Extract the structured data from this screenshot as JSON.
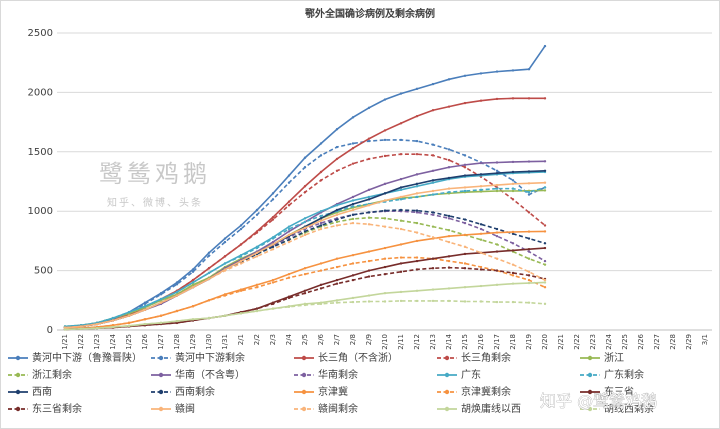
{
  "chart_data": {
    "type": "line",
    "title": "鄂外全国确诊病例及剩余病例",
    "annotations": [
      "鹭鸶鸡鹅",
      "知乎、微博、头条",
      "知乎 @鹭鸶鸡鹅"
    ],
    "categories": [
      "1/21",
      "1/22",
      "1/23",
      "1/24",
      "1/25",
      "1/26",
      "1/27",
      "1/28",
      "1/29",
      "1/30",
      "1/31",
      "2/1",
      "2/2",
      "2/3",
      "2/4",
      "2/5",
      "2/6",
      "2/7",
      "2/8",
      "2/9",
      "2/10",
      "2/11",
      "2/12",
      "2/13",
      "2/14",
      "2/15",
      "2/16",
      "2/17",
      "2/18",
      "2/19",
      "2/20",
      "2/21",
      "2/22",
      "2/23",
      "2/24",
      "2/25",
      "2/26",
      "2/27",
      "2/28",
      "2/29",
      "3/1"
    ],
    "ylim": [
      0,
      2500
    ],
    "yticks": [
      0,
      500,
      1000,
      1500,
      2000,
      2500
    ],
    "grid": true,
    "legend": "bottom",
    "series": [
      {
        "name": "黄河中下游（鲁豫晋陕）",
        "color": "#4a7ebb",
        "dashed": false,
        "values": [
          20,
          30,
          50,
          90,
          150,
          230,
          310,
          400,
          510,
          650,
          770,
          880,
          1010,
          1150,
          1300,
          1450,
          1570,
          1690,
          1790,
          1870,
          1940,
          1990,
          2030,
          2070,
          2110,
          2140,
          2160,
          2175,
          2185,
          2195,
          2390,
          null,
          null,
          null,
          null,
          null,
          null,
          null,
          null,
          null,
          null
        ]
      },
      {
        "name": "黄河中下游剩余",
        "color": "#4a7ebb",
        "dashed": true,
        "values": [
          20,
          30,
          50,
          85,
          145,
          220,
          300,
          385,
          490,
          625,
          740,
          850,
          970,
          1100,
          1240,
          1370,
          1470,
          1540,
          1570,
          1590,
          1600,
          1600,
          1590,
          1560,
          1520,
          1470,
          1410,
          1340,
          1260,
          1140,
          1200,
          null,
          null,
          null,
          null,
          null,
          null,
          null,
          null,
          null,
          null
        ]
      },
      {
        "name": "长三角（不含浙）",
        "color": "#be4b48",
        "dashed": false,
        "values": [
          20,
          30,
          50,
          80,
          130,
          190,
          260,
          330,
          420,
          520,
          620,
          720,
          830,
          950,
          1080,
          1210,
          1330,
          1440,
          1530,
          1610,
          1680,
          1740,
          1800,
          1850,
          1880,
          1910,
          1930,
          1945,
          1950,
          1950,
          1950,
          null,
          null,
          null,
          null,
          null,
          null,
          null,
          null,
          null,
          null
        ]
      },
      {
        "name": "长三角剩余",
        "color": "#be4b48",
        "dashed": true,
        "values": [
          20,
          30,
          50,
          80,
          130,
          190,
          260,
          330,
          420,
          520,
          620,
          720,
          820,
          930,
          1050,
          1160,
          1260,
          1340,
          1400,
          1440,
          1465,
          1480,
          1480,
          1470,
          1430,
          1370,
          1290,
          1200,
          1100,
          990,
          880,
          null,
          null,
          null,
          null,
          null,
          null,
          null,
          null,
          null,
          null
        ]
      },
      {
        "name": "浙江",
        "color": "#98b954",
        "dashed": false,
        "values": [
          30,
          40,
          60,
          100,
          140,
          190,
          250,
          300,
          380,
          440,
          530,
          600,
          660,
          720,
          800,
          870,
          940,
          990,
          1030,
          1060,
          1090,
          1110,
          1120,
          1140,
          1150,
          1160,
          1165,
          1170,
          1170,
          1172,
          1175,
          null,
          null,
          null,
          null,
          null,
          null,
          null,
          null,
          null,
          null
        ]
      },
      {
        "name": "浙江剩余",
        "color": "#98b954",
        "dashed": true,
        "values": [
          30,
          40,
          60,
          100,
          140,
          190,
          250,
          300,
          380,
          440,
          530,
          590,
          640,
          700,
          760,
          820,
          870,
          910,
          935,
          945,
          940,
          920,
          900,
          870,
          840,
          800,
          760,
          720,
          660,
          600,
          550,
          null,
          null,
          null,
          null,
          null,
          null,
          null,
          null,
          null,
          null
        ]
      },
      {
        "name": "华南（不含粤）",
        "color": "#7d60a0",
        "dashed": false,
        "values": [
          20,
          30,
          50,
          80,
          120,
          170,
          220,
          290,
          360,
          430,
          520,
          590,
          660,
          740,
          830,
          910,
          990,
          1060,
          1120,
          1180,
          1230,
          1270,
          1310,
          1340,
          1370,
          1390,
          1405,
          1410,
          1415,
          1418,
          1420,
          null,
          null,
          null,
          null,
          null,
          null,
          null,
          null,
          null,
          null
        ]
      },
      {
        "name": "华南剩余",
        "color": "#7d60a0",
        "dashed": true,
        "values": [
          20,
          30,
          50,
          80,
          120,
          170,
          220,
          290,
          360,
          430,
          520,
          580,
          640,
          710,
          780,
          850,
          900,
          940,
          970,
          990,
          1000,
          1000,
          990,
          970,
          940,
          900,
          850,
          790,
          730,
          660,
          580,
          null,
          null,
          null,
          null,
          null,
          null,
          null,
          null,
          null,
          null
        ]
      },
      {
        "name": "广东",
        "color": "#46aac5",
        "dashed": false,
        "values": [
          30,
          40,
          60,
          100,
          150,
          200,
          260,
          320,
          400,
          480,
          560,
          630,
          700,
          780,
          870,
          940,
          1000,
          1050,
          1090,
          1120,
          1150,
          1180,
          1210,
          1240,
          1270,
          1290,
          1300,
          1310,
          1320,
          1325,
          1330,
          null,
          null,
          null,
          null,
          null,
          null,
          null,
          null,
          null,
          null
        ]
      },
      {
        "name": "广东剩余",
        "color": "#46aac5",
        "dashed": true,
        "values": [
          30,
          40,
          60,
          100,
          150,
          200,
          260,
          320,
          400,
          480,
          560,
          620,
          690,
          770,
          850,
          910,
          960,
          1000,
          1040,
          1060,
          1080,
          1100,
          1120,
          1140,
          1160,
          1170,
          1180,
          1190,
          1190,
          1160,
          1200,
          null,
          null,
          null,
          null,
          null,
          null,
          null,
          null,
          null,
          null
        ]
      },
      {
        "name": "西南",
        "color": "#1f3f6e",
        "dashed": false,
        "values": [
          20,
          30,
          50,
          80,
          120,
          170,
          230,
          290,
          360,
          430,
          510,
          580,
          650,
          720,
          790,
          870,
          940,
          1010,
          1060,
          1100,
          1150,
          1200,
          1230,
          1260,
          1280,
          1300,
          1310,
          1320,
          1330,
          1335,
          1340,
          null,
          null,
          null,
          null,
          null,
          null,
          null,
          null,
          null,
          null
        ]
      },
      {
        "name": "西南剩余",
        "color": "#1f3f6e",
        "dashed": true,
        "values": [
          20,
          30,
          50,
          80,
          120,
          170,
          230,
          290,
          360,
          430,
          510,
          570,
          640,
          700,
          760,
          830,
          880,
          930,
          970,
          990,
          1005,
          1010,
          1005,
          990,
          960,
          930,
          890,
          850,
          810,
          770,
          730,
          null,
          null,
          null,
          null,
          null,
          null,
          null,
          null,
          null,
          null
        ]
      },
      {
        "name": "京津冀",
        "color": "#f69240",
        "dashed": false,
        "values": [
          10,
          15,
          25,
          40,
          60,
          90,
          120,
          160,
          200,
          250,
          300,
          340,
          380,
          420,
          470,
          520,
          560,
          600,
          630,
          660,
          690,
          720,
          750,
          770,
          790,
          800,
          810,
          820,
          825,
          828,
          830,
          null,
          null,
          null,
          null,
          null,
          null,
          null,
          null,
          null,
          null
        ]
      },
      {
        "name": "京津冀剩余",
        "color": "#f69240",
        "dashed": true,
        "values": [
          10,
          15,
          25,
          40,
          60,
          90,
          120,
          160,
          200,
          250,
          290,
          330,
          360,
          400,
          440,
          470,
          500,
          530,
          560,
          580,
          600,
          610,
          610,
          600,
          580,
          560,
          530,
          500,
          460,
          420,
          360,
          null,
          null,
          null,
          null,
          null,
          null,
          null,
          null,
          null,
          null
        ]
      },
      {
        "name": "东三省",
        "color": "#772c2a",
        "dashed": false,
        "values": [
          5,
          10,
          15,
          20,
          30,
          40,
          50,
          60,
          80,
          100,
          120,
          150,
          180,
          230,
          280,
          330,
          380,
          420,
          460,
          500,
          530,
          560,
          580,
          600,
          620,
          640,
          650,
          660,
          670,
          680,
          690,
          null,
          null,
          null,
          null,
          null,
          null,
          null,
          null,
          null,
          null
        ]
      },
      {
        "name": "东三省剩余",
        "color": "#772c2a",
        "dashed": true,
        "values": [
          5,
          10,
          15,
          20,
          30,
          40,
          50,
          60,
          80,
          100,
          120,
          150,
          180,
          220,
          270,
          310,
          350,
          390,
          420,
          450,
          470,
          490,
          510,
          520,
          525,
          520,
          510,
          500,
          480,
          460,
          430,
          null,
          null,
          null,
          null,
          null,
          null,
          null,
          null,
          null,
          null
        ]
      },
      {
        "name": "赣闽",
        "color": "#f9b47a",
        "dashed": false,
        "values": [
          20,
          30,
          50,
          80,
          120,
          170,
          230,
          290,
          360,
          430,
          510,
          580,
          650,
          720,
          800,
          860,
          920,
          970,
          1010,
          1050,
          1090,
          1120,
          1150,
          1170,
          1190,
          1200,
          1210,
          1220,
          1230,
          1235,
          1240,
          null,
          null,
          null,
          null,
          null,
          null,
          null,
          null,
          null,
          null
        ]
      },
      {
        "name": "赣闽剩余",
        "color": "#f9b47a",
        "dashed": true,
        "values": [
          20,
          30,
          50,
          80,
          120,
          170,
          230,
          290,
          360,
          430,
          500,
          560,
          620,
          680,
          740,
          800,
          850,
          880,
          900,
          890,
          870,
          850,
          820,
          780,
          740,
          700,
          650,
          600,
          550,
          490,
          420,
          null,
          null,
          null,
          null,
          null,
          null,
          null,
          null,
          null,
          null
        ]
      },
      {
        "name": "胡焕庸线以西",
        "color": "#c3d69b",
        "dashed": false,
        "values": [
          5,
          10,
          15,
          25,
          35,
          50,
          60,
          75,
          90,
          100,
          120,
          140,
          160,
          180,
          200,
          220,
          230,
          250,
          270,
          290,
          310,
          320,
          330,
          340,
          350,
          360,
          370,
          380,
          390,
          395,
          400,
          null,
          null,
          null,
          null,
          null,
          null,
          null,
          null,
          null,
          null
        ]
      },
      {
        "name": "胡线西剩余",
        "color": "#c3d69b",
        "dashed": true,
        "values": [
          5,
          10,
          15,
          25,
          35,
          50,
          60,
          75,
          90,
          100,
          120,
          140,
          160,
          180,
          195,
          210,
          220,
          230,
          235,
          240,
          240,
          245,
          245,
          245,
          245,
          240,
          240,
          235,
          235,
          230,
          220,
          null,
          null,
          null,
          null,
          null,
          null,
          null,
          null,
          null,
          null
        ]
      }
    ]
  }
}
